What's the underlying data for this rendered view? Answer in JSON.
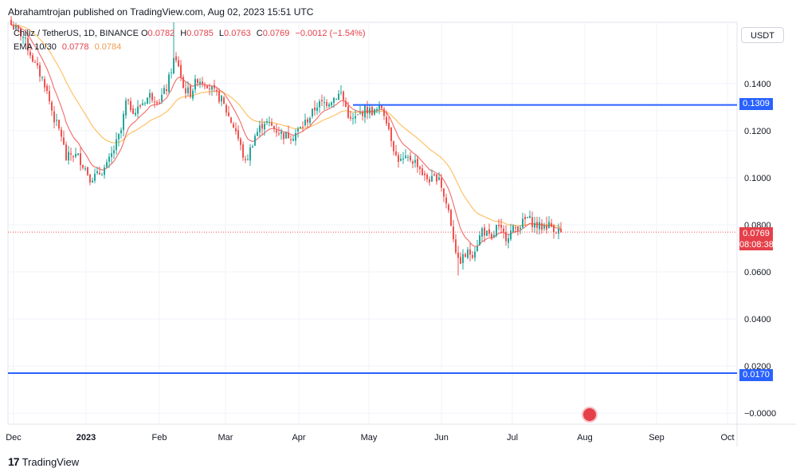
{
  "header": {
    "text": "Abrahamtrojan published on TradingView.com, Aug 02, 2023 15:51 UTC"
  },
  "legend": {
    "symbol": "Chiliz / TetherUS, 1D, BINANCE",
    "o_key": "O",
    "o_val": "0.0782",
    "h_key": "H",
    "h_val": "0.0785",
    "l_key": "L",
    "l_val": "0.0763",
    "c_key": "C",
    "c_val": "0.0769",
    "change": "−0.0012 (−1.54%)",
    "ema_label": "EMA 10/30",
    "ema_a": "0.0778",
    "ema_b": "0.0784"
  },
  "currency": "USDT",
  "price_tags": {
    "level_high": "0.1309",
    "level_low": "0.0170",
    "last": "0.0769",
    "countdown": "08:08:38"
  },
  "footer": {
    "brand": "TradingView",
    "logo_glyph": "17"
  },
  "colors": {
    "up": "#26a69a",
    "down": "#ef5350",
    "ema_fast": "#ef5350",
    "ema_slow": "#ff9800",
    "level": "#2962ff",
    "grid": "#f0f3fa"
  },
  "chart_data": {
    "type": "candlestick",
    "title": "Chiliz / TetherUS, 1D, BINANCE",
    "x_labels": [
      "Dec",
      "2023",
      "Feb",
      "Mar",
      "Apr",
      "May",
      "Jun",
      "Jul",
      "Aug",
      "Sep",
      "Oct"
    ],
    "y_ticks": [
      "0.1400",
      "0.1200",
      "0.1000",
      "0.0800",
      "0.0600",
      "0.0400",
      "0.0200",
      "−0.0000"
    ],
    "ylim": [
      -0.004,
      0.166
    ],
    "horizontal_levels": [
      0.1309,
      0.017
    ],
    "last_price": 0.0769,
    "close_anchors": [
      [
        0,
        0.165
      ],
      [
        5,
        0.16
      ],
      [
        10,
        0.148
      ],
      [
        14,
        0.14
      ],
      [
        18,
        0.125
      ],
      [
        21,
        0.118
      ],
      [
        23,
        0.108
      ],
      [
        25,
        0.11
      ],
      [
        28,
        0.109
      ],
      [
        31,
        0.104
      ],
      [
        33,
        0.1
      ],
      [
        36,
        0.101
      ],
      [
        40,
        0.105
      ],
      [
        43,
        0.112
      ],
      [
        46,
        0.12
      ],
      [
        48,
        0.132
      ],
      [
        52,
        0.128
      ],
      [
        55,
        0.132
      ],
      [
        58,
        0.135
      ],
      [
        62,
        0.133
      ],
      [
        65,
        0.138
      ],
      [
        68,
        0.15
      ],
      [
        70,
        0.148
      ],
      [
        72,
        0.138
      ],
      [
        75,
        0.136
      ],
      [
        78,
        0.142
      ],
      [
        82,
        0.14
      ],
      [
        85,
        0.136
      ],
      [
        88,
        0.133
      ],
      [
        91,
        0.126
      ],
      [
        94,
        0.12
      ],
      [
        96,
        0.113
      ],
      [
        98,
        0.106
      ],
      [
        102,
        0.118
      ],
      [
        106,
        0.124
      ],
      [
        110,
        0.121
      ],
      [
        114,
        0.118
      ],
      [
        118,
        0.118
      ],
      [
        121,
        0.121
      ],
      [
        125,
        0.126
      ],
      [
        128,
        0.131
      ],
      [
        132,
        0.132
      ],
      [
        135,
        0.134
      ],
      [
        138,
        0.136
      ],
      [
        140,
        0.13
      ],
      [
        142,
        0.124
      ],
      [
        145,
        0.126
      ],
      [
        148,
        0.129
      ],
      [
        152,
        0.128
      ],
      [
        155,
        0.13
      ],
      [
        157,
        0.125
      ],
      [
        159,
        0.117
      ],
      [
        161,
        0.109
      ],
      [
        163,
        0.107
      ],
      [
        167,
        0.108
      ],
      [
        170,
        0.106
      ],
      [
        173,
        0.1
      ],
      [
        176,
        0.099
      ],
      [
        179,
        0.101
      ],
      [
        181,
        0.092
      ],
      [
        183,
        0.086
      ],
      [
        185,
        0.075
      ],
      [
        187,
        0.064
      ],
      [
        189,
        0.066
      ],
      [
        191,
        0.068
      ],
      [
        193,
        0.068
      ],
      [
        195,
        0.072
      ],
      [
        197,
        0.078
      ],
      [
        199,
        0.076
      ],
      [
        201,
        0.073
      ],
      [
        203,
        0.079
      ],
      [
        205,
        0.077
      ],
      [
        207,
        0.075
      ],
      [
        210,
        0.078
      ],
      [
        213,
        0.08
      ],
      [
        216,
        0.083
      ],
      [
        219,
        0.08
      ],
      [
        222,
        0.079
      ],
      [
        225,
        0.08
      ],
      [
        228,
        0.078
      ],
      [
        230,
        0.0769
      ]
    ],
    "series": [
      {
        "name": "EMA 10",
        "last": 0.0778
      },
      {
        "name": "EMA 30",
        "last": 0.0784
      }
    ]
  }
}
